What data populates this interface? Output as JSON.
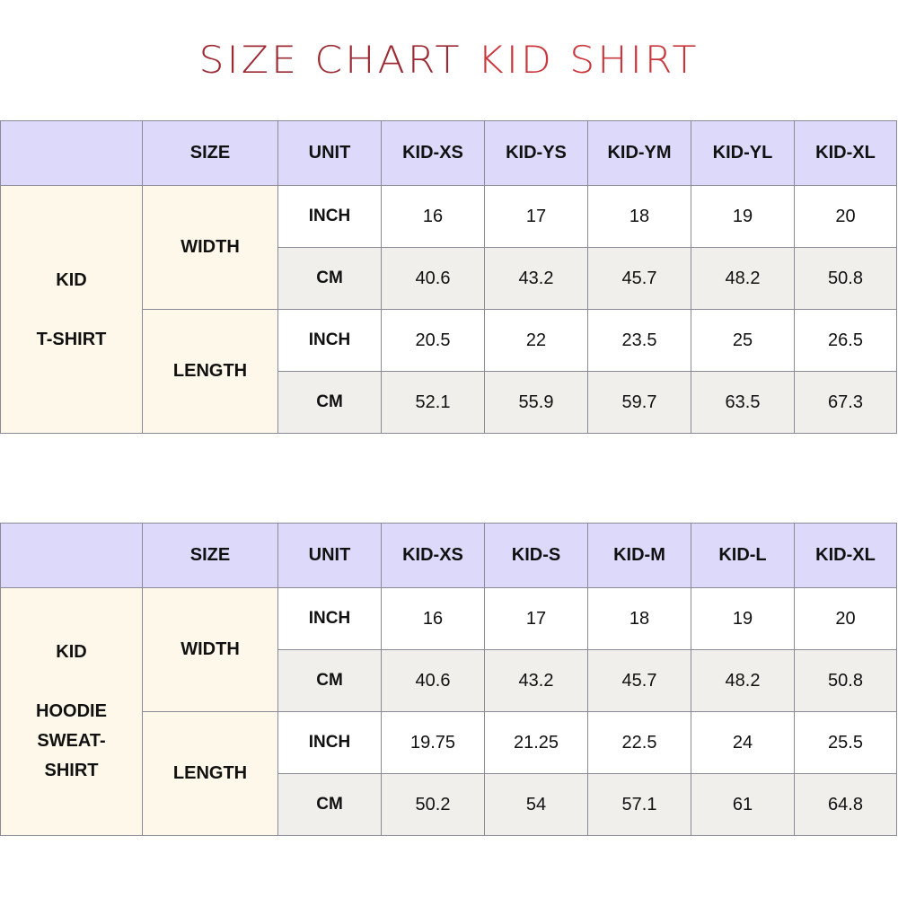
{
  "title": {
    "part1": "SIZE CHART",
    "part2": "KID SHIRT"
  },
  "colors": {
    "title_dark": "#9b2a33",
    "title_red": "#c9373d",
    "header_bg": "#dcd9fb",
    "label_bg": "#fdf8ea",
    "alt_row_bg": "#f1efeb"
  },
  "tables": [
    {
      "category_lines": [
        "KID",
        "T-SHIRT"
      ],
      "headers": [
        "",
        "SIZE",
        "UNIT",
        "KID-XS",
        "KID-YS",
        "KID-YM",
        "KID-YL",
        "KID-XL"
      ],
      "groups": [
        {
          "label": "WIDTH",
          "rows": [
            {
              "unit": "INCH",
              "values": [
                "16",
                "17",
                "18",
                "19",
                "20"
              ]
            },
            {
              "unit": "CM",
              "values": [
                "40.6",
                "43.2",
                "45.7",
                "48.2",
                "50.8"
              ]
            }
          ]
        },
        {
          "label": "LENGTH",
          "rows": [
            {
              "unit": "INCH",
              "values": [
                "20.5",
                "22",
                "23.5",
                "25",
                "26.5"
              ]
            },
            {
              "unit": "CM",
              "values": [
                "52.1",
                "55.9",
                "59.7",
                "63.5",
                "67.3"
              ]
            }
          ]
        }
      ]
    },
    {
      "category_lines": [
        "KID",
        "HOODIE",
        "SWEAT-",
        "SHIRT"
      ],
      "headers": [
        "",
        "SIZE",
        "UNIT",
        "KID-XS",
        "KID-S",
        "KID-M",
        "KID-L",
        "KID-XL"
      ],
      "groups": [
        {
          "label": "WIDTH",
          "rows": [
            {
              "unit": "INCH",
              "values": [
                "16",
                "17",
                "18",
                "19",
                "20"
              ]
            },
            {
              "unit": "CM",
              "values": [
                "40.6",
                "43.2",
                "45.7",
                "48.2",
                "50.8"
              ]
            }
          ]
        },
        {
          "label": "LENGTH",
          "rows": [
            {
              "unit": "INCH",
              "values": [
                "19.75",
                "21.25",
                "22.5",
                "24",
                "25.5"
              ]
            },
            {
              "unit": "CM",
              "values": [
                "50.2",
                "54",
                "57.1",
                "61",
                "64.8"
              ]
            }
          ]
        }
      ]
    }
  ]
}
